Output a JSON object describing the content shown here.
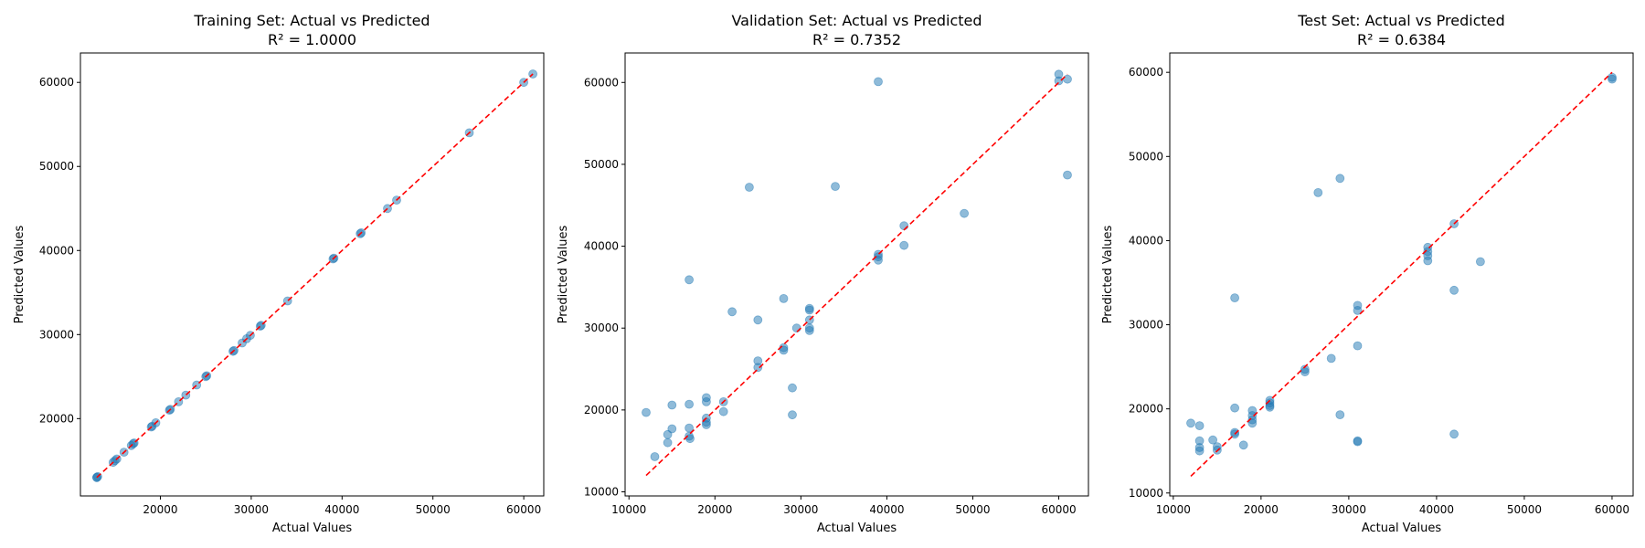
{
  "chart_data": [
    {
      "type": "scatter",
      "title": "Training Set: Actual vs Predicted",
      "subtitle": "R² = 1.0000",
      "xlabel": "Actual Values",
      "ylabel": "Predicted Values",
      "xlim": [
        11200,
        62200
      ],
      "ylim": [
        10800,
        63500
      ],
      "xticks": [
        20000,
        30000,
        40000,
        50000,
        60000
      ],
      "yticks": [
        20000,
        30000,
        40000,
        50000,
        60000
      ],
      "xtick_labels": [
        "20000",
        "30000",
        "40000",
        "50000",
        "60000"
      ],
      "ytick_labels": [
        "20000",
        "30000",
        "40000",
        "50000",
        "60000"
      ],
      "grid": false,
      "reference_line": {
        "style": "dashed",
        "color": "#ff0000",
        "from": [
          13000,
          13000
        ],
        "to": [
          61000,
          61000
        ]
      },
      "point_color": "#1f77b4",
      "points": [
        [
          13000,
          13000
        ],
        [
          13000,
          13000
        ],
        [
          13100,
          13100
        ],
        [
          14800,
          14800
        ],
        [
          15000,
          15000
        ],
        [
          15200,
          15200
        ],
        [
          16000,
          16000
        ],
        [
          16800,
          16800
        ],
        [
          17000,
          17000
        ],
        [
          17100,
          17100
        ],
        [
          19000,
          19000
        ],
        [
          19100,
          19100
        ],
        [
          19500,
          19500
        ],
        [
          21000,
          21000
        ],
        [
          21100,
          21100
        ],
        [
          22000,
          22000
        ],
        [
          22800,
          22800
        ],
        [
          24000,
          24000
        ],
        [
          25000,
          25000
        ],
        [
          25100,
          25100
        ],
        [
          28000,
          28000
        ],
        [
          28100,
          28100
        ],
        [
          29000,
          29000
        ],
        [
          29500,
          29500
        ],
        [
          29900,
          29900
        ],
        [
          31000,
          31000
        ],
        [
          31100,
          31100
        ],
        [
          34000,
          34000
        ],
        [
          39000,
          39000
        ],
        [
          39100,
          39100
        ],
        [
          42000,
          42000
        ],
        [
          42100,
          42100
        ],
        [
          45000,
          45000
        ],
        [
          46000,
          46000
        ],
        [
          54000,
          54000
        ],
        [
          60000,
          60000
        ],
        [
          61000,
          61000
        ]
      ]
    },
    {
      "type": "scatter",
      "title": "Validation Set: Actual vs Predicted",
      "subtitle": "R² = 0.7352",
      "xlabel": "Actual Values",
      "ylabel": "Predicted Values",
      "xlim": [
        9550,
        63450
      ],
      "ylim": [
        9500,
        63600
      ],
      "xticks": [
        10000,
        20000,
        30000,
        40000,
        50000,
        60000
      ],
      "yticks": [
        10000,
        20000,
        30000,
        40000,
        50000,
        60000
      ],
      "xtick_labels": [
        "10000",
        "20000",
        "30000",
        "40000",
        "50000",
        "60000"
      ],
      "ytick_labels": [
        "10000",
        "20000",
        "30000",
        "40000",
        "50000",
        "60000"
      ],
      "grid": false,
      "reference_line": {
        "style": "dashed",
        "color": "#ff0000",
        "from": [
          12000,
          12000
        ],
        "to": [
          61000,
          61000
        ]
      },
      "point_color": "#1f77b4",
      "points": [
        [
          12000,
          19700
        ],
        [
          13000,
          14300
        ],
        [
          14500,
          16000
        ],
        [
          14500,
          17000
        ],
        [
          15000,
          17700
        ],
        [
          15000,
          20600
        ],
        [
          17000,
          35900
        ],
        [
          17000,
          20700
        ],
        [
          17000,
          17800
        ],
        [
          17000,
          16800
        ],
        [
          17100,
          16500
        ],
        [
          19000,
          21500
        ],
        [
          19000,
          21000
        ],
        [
          19000,
          19000
        ],
        [
          19000,
          18500
        ],
        [
          19000,
          18200
        ],
        [
          21000,
          21000
        ],
        [
          21000,
          19800
        ],
        [
          22000,
          32000
        ],
        [
          24000,
          47200
        ],
        [
          25000,
          31000
        ],
        [
          25000,
          26000
        ],
        [
          25000,
          25200
        ],
        [
          28000,
          33600
        ],
        [
          28000,
          27600
        ],
        [
          28000,
          27300
        ],
        [
          29000,
          22700
        ],
        [
          29000,
          19400
        ],
        [
          29500,
          30000
        ],
        [
          31000,
          32400
        ],
        [
          31000,
          32200
        ],
        [
          31000,
          31000
        ],
        [
          31000,
          30000
        ],
        [
          31000,
          29700
        ],
        [
          34000,
          47300
        ],
        [
          39000,
          60100
        ],
        [
          39000,
          39000
        ],
        [
          39000,
          38700
        ],
        [
          39000,
          38300
        ],
        [
          42000,
          42500
        ],
        [
          42000,
          40100
        ],
        [
          49000,
          44000
        ],
        [
          60000,
          61000
        ],
        [
          60000,
          60200
        ],
        [
          61000,
          60400
        ],
        [
          61000,
          48700
        ]
      ]
    },
    {
      "type": "scatter",
      "title": "Test Set: Actual vs Predicted",
      "subtitle": "R² = 0.6384",
      "xlabel": "Actual Values",
      "ylabel": "Predicted Values",
      "xlim": [
        9600,
        62400
      ],
      "ylim": [
        9650,
        62300
      ],
      "xticks": [
        10000,
        20000,
        30000,
        40000,
        50000,
        60000
      ],
      "yticks": [
        10000,
        20000,
        30000,
        40000,
        50000,
        60000
      ],
      "xtick_labels": [
        "10000",
        "20000",
        "30000",
        "40000",
        "50000",
        "60000"
      ],
      "ytick_labels": [
        "10000",
        "20000",
        "30000",
        "40000",
        "50000",
        "60000"
      ],
      "grid": false,
      "reference_line": {
        "style": "dashed",
        "color": "#ff0000",
        "from": [
          12000,
          12000
        ],
        "to": [
          60000,
          60000
        ]
      },
      "point_color": "#1f77b4",
      "points": [
        [
          12000,
          18300
        ],
        [
          13000,
          18000
        ],
        [
          13000,
          16200
        ],
        [
          13000,
          15400
        ],
        [
          13000,
          15000
        ],
        [
          14500,
          16300
        ],
        [
          15000,
          15500
        ],
        [
          15000,
          15100
        ],
        [
          17000,
          33200
        ],
        [
          17000,
          20100
        ],
        [
          17000,
          17200
        ],
        [
          17000,
          17000
        ],
        [
          18000,
          15700
        ],
        [
          19000,
          19800
        ],
        [
          19000,
          19200
        ],
        [
          19000,
          18700
        ],
        [
          19000,
          18300
        ],
        [
          21000,
          21000
        ],
        [
          21000,
          20700
        ],
        [
          21000,
          20400
        ],
        [
          21000,
          20200
        ],
        [
          25000,
          24700
        ],
        [
          25000,
          24400
        ],
        [
          26500,
          45700
        ],
        [
          28000,
          26000
        ],
        [
          29000,
          47400
        ],
        [
          29000,
          19300
        ],
        [
          31000,
          32300
        ],
        [
          31000,
          31700
        ],
        [
          31000,
          27500
        ],
        [
          31000,
          16200
        ],
        [
          31000,
          16100
        ],
        [
          39000,
          39200
        ],
        [
          39000,
          38700
        ],
        [
          39000,
          38200
        ],
        [
          39000,
          37600
        ],
        [
          42000,
          42000
        ],
        [
          42000,
          34100
        ],
        [
          42000,
          17000
        ],
        [
          45000,
          37500
        ],
        [
          60000,
          59400
        ],
        [
          60000,
          59200
        ]
      ]
    }
  ]
}
